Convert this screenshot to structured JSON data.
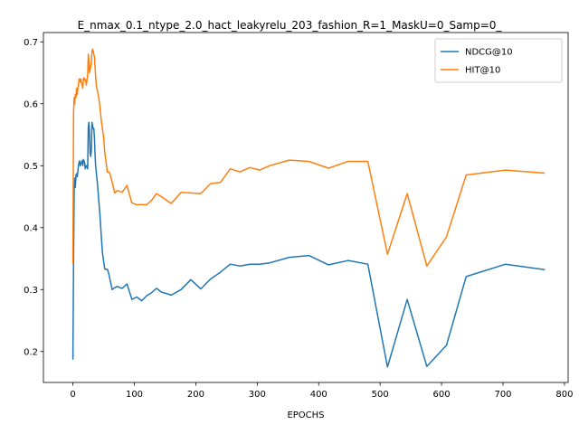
{
  "chart_data": {
    "type": "line",
    "title": "E_nmax_0.1_ntype_2.0_hact_leakyrelu_203_fashion_R=1_MaskU=0_Samp=0_",
    "xlabel": "EPOCHS",
    "ylabel": "",
    "xlim": [
      -48,
      806
    ],
    "ylim": [
      0.15,
      0.715
    ],
    "xticks": [
      0,
      100,
      200,
      300,
      400,
      500,
      600,
      700,
      800
    ],
    "yticks": [
      0.2,
      0.3,
      0.4,
      0.5,
      0.6,
      0.7
    ],
    "ytick_labels": [
      "0.2",
      "0.3",
      "0.4",
      "0.5",
      "0.6",
      "0.7"
    ],
    "grid": false,
    "legend_position": "top-right",
    "series": [
      {
        "name": "NDCG@10",
        "color": "#1f77b4",
        "x": [
          0,
          1,
          2,
          3,
          4,
          5,
          6,
          7,
          8,
          9,
          10,
          11,
          12,
          13,
          14,
          15,
          16,
          17,
          18,
          19,
          20,
          21,
          22,
          23,
          24,
          25,
          26,
          27,
          28,
          29,
          30,
          31,
          32,
          33,
          34,
          35,
          36,
          37,
          38,
          39,
          40,
          42,
          44,
          46,
          48,
          50,
          52,
          54,
          56,
          58,
          60,
          64,
          68,
          72,
          80,
          88,
          96,
          104,
          112,
          120,
          128,
          136,
          144,
          160,
          176,
          192,
          208,
          224,
          240,
          256,
          272,
          288,
          304,
          320,
          352,
          384,
          416,
          448,
          480,
          512,
          544,
          576,
          608,
          640,
          704,
          768
        ],
        "y": [
          0.187,
          0.345,
          0.46,
          0.48,
          0.465,
          0.485,
          0.487,
          0.482,
          0.49,
          0.5,
          0.505,
          0.508,
          0.5,
          0.503,
          0.505,
          0.508,
          0.5,
          0.51,
          0.508,
          0.505,
          0.495,
          0.5,
          0.498,
          0.5,
          0.495,
          0.562,
          0.57,
          0.555,
          0.52,
          0.515,
          0.525,
          0.57,
          0.565,
          0.56,
          0.56,
          0.545,
          0.52,
          0.5,
          0.49,
          0.48,
          0.47,
          0.445,
          0.42,
          0.39,
          0.36,
          0.345,
          0.333,
          0.333,
          0.333,
          0.327,
          0.318,
          0.3,
          0.303,
          0.305,
          0.302,
          0.309,
          0.284,
          0.288,
          0.282,
          0.29,
          0.295,
          0.302,
          0.296,
          0.291,
          0.3,
          0.316,
          0.301,
          0.317,
          0.328,
          0.341,
          0.338,
          0.341,
          0.341,
          0.343,
          0.352,
          0.355,
          0.34,
          0.347,
          0.341,
          0.175,
          0.284,
          0.176,
          0.21,
          0.321,
          0.341,
          0.332
        ]
      },
      {
        "name": "HIT@10",
        "color": "#ff7f0e",
        "x": [
          0,
          1,
          2,
          3,
          4,
          5,
          6,
          7,
          8,
          9,
          10,
          11,
          12,
          13,
          14,
          15,
          16,
          17,
          18,
          19,
          20,
          21,
          22,
          23,
          24,
          25,
          26,
          27,
          28,
          29,
          30,
          31,
          32,
          33,
          34,
          35,
          36,
          37,
          38,
          39,
          40,
          42,
          44,
          46,
          48,
          50,
          52,
          54,
          56,
          58,
          60,
          64,
          68,
          72,
          80,
          88,
          96,
          104,
          112,
          120,
          128,
          136,
          144,
          160,
          176,
          192,
          208,
          224,
          240,
          256,
          272,
          288,
          304,
          320,
          352,
          384,
          416,
          448,
          480,
          512,
          544,
          576,
          608,
          640,
          704,
          768
        ],
        "y": [
          0.342,
          0.585,
          0.61,
          0.6,
          0.615,
          0.61,
          0.625,
          0.615,
          0.625,
          0.63,
          0.64,
          0.64,
          0.635,
          0.64,
          0.632,
          0.63,
          0.625,
          0.64,
          0.642,
          0.638,
          0.64,
          0.636,
          0.63,
          0.64,
          0.645,
          0.68,
          0.67,
          0.65,
          0.655,
          0.66,
          0.665,
          0.685,
          0.688,
          0.685,
          0.68,
          0.675,
          0.66,
          0.645,
          0.63,
          0.625,
          0.62,
          0.61,
          0.595,
          0.575,
          0.56,
          0.545,
          0.52,
          0.505,
          0.49,
          0.49,
          0.488,
          0.473,
          0.456,
          0.46,
          0.457,
          0.468,
          0.44,
          0.437,
          0.437,
          0.437,
          0.444,
          0.455,
          0.45,
          0.439,
          0.457,
          0.456,
          0.455,
          0.471,
          0.473,
          0.495,
          0.49,
          0.497,
          0.493,
          0.5,
          0.509,
          0.507,
          0.496,
          0.507,
          0.507,
          0.357,
          0.455,
          0.338,
          0.385,
          0.485,
          0.493,
          0.488
        ]
      }
    ]
  }
}
